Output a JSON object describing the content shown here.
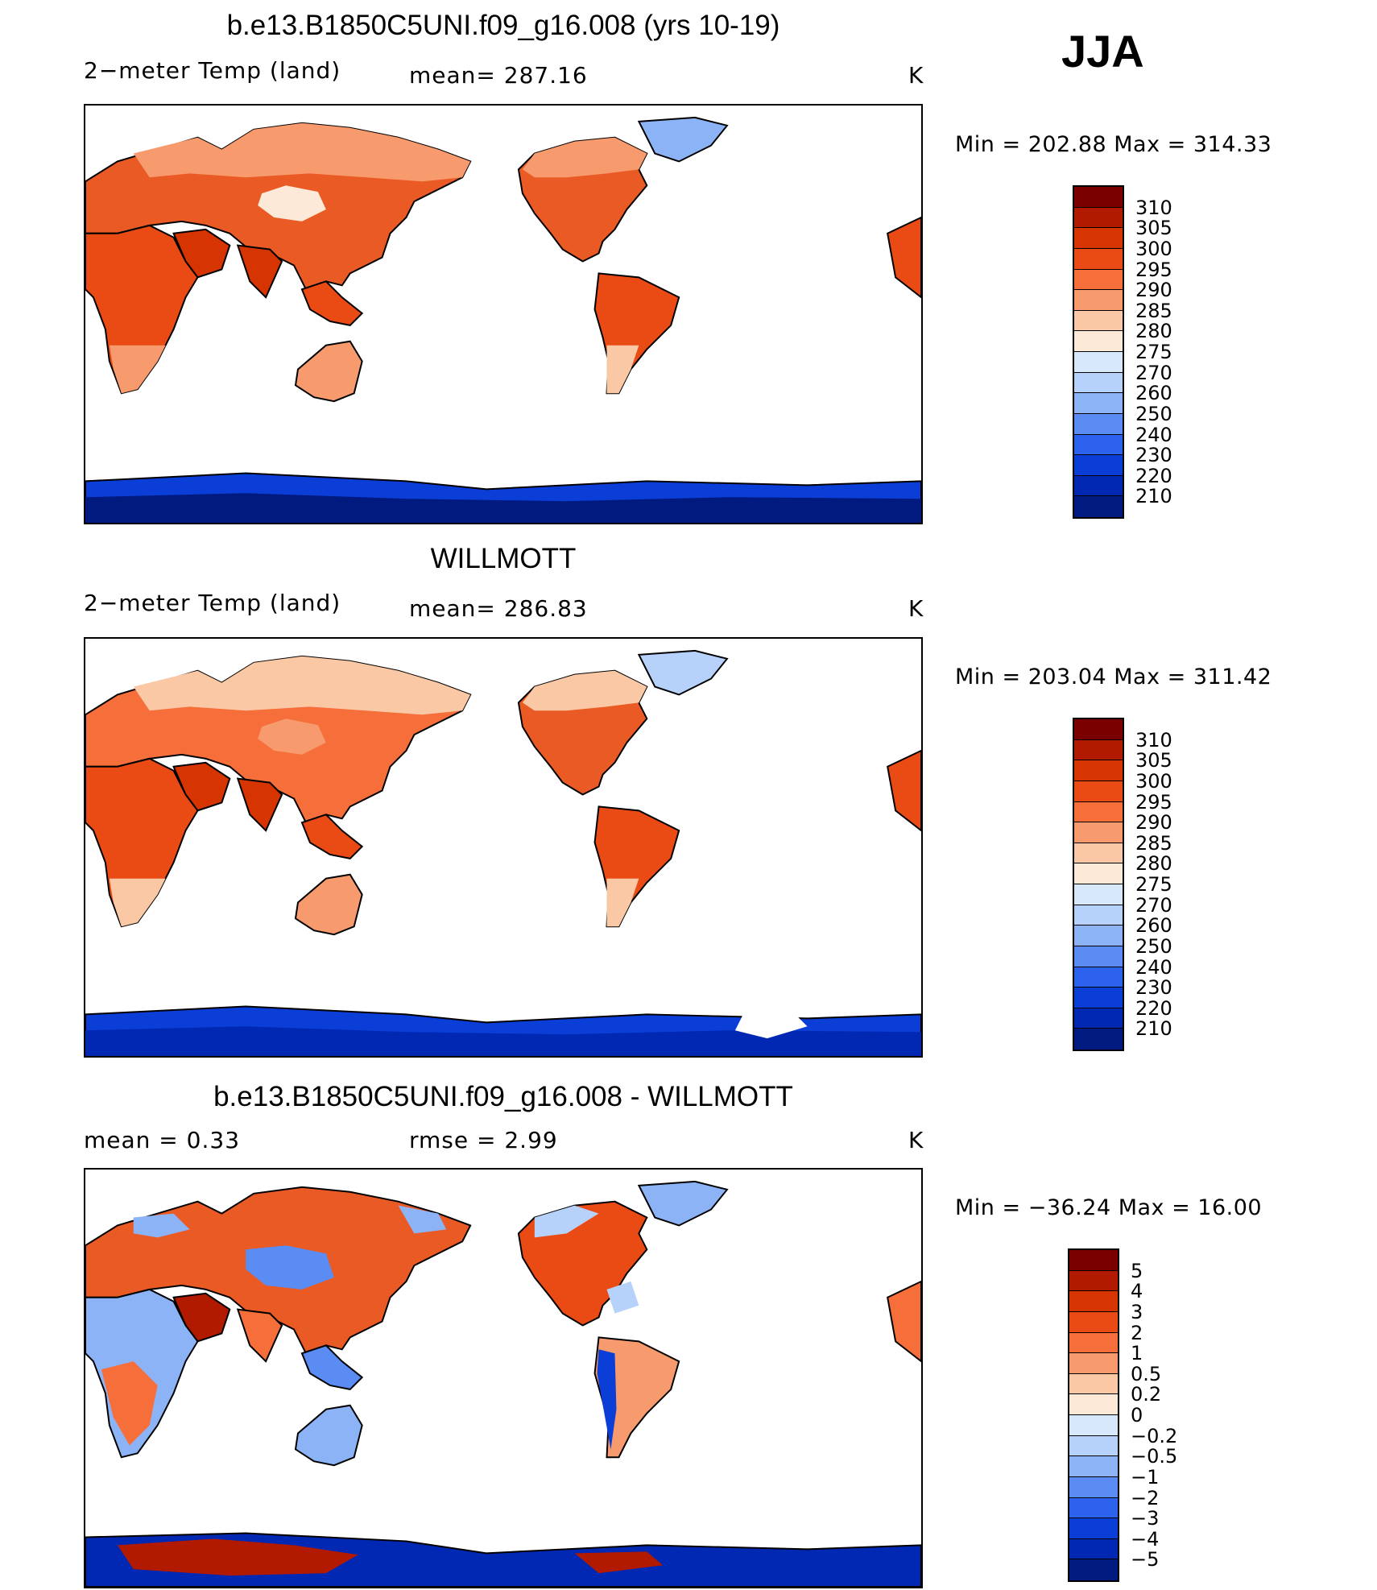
{
  "season": "JJA",
  "panels": [
    {
      "title": "b.e13.B1850C5UNI.f09_g16.008 (yrs 10-19)",
      "left_label": "2−meter Temp (land)",
      "center_label": "mean=  287.16",
      "units": "K",
      "minmax": "Min = 202.88 Max = 314.33",
      "colorbar": {
        "labels": [
          "310",
          "305",
          "300",
          "295",
          "290",
          "285",
          "280",
          "275",
          "270",
          "260",
          "250",
          "240",
          "230",
          "220",
          "210"
        ],
        "colors": [
          "#7a0000",
          "#b21a00",
          "#d63400",
          "#ea4a14",
          "#f66e3a",
          "#f79a6e",
          "#fbc8a6",
          "#fde9d7",
          "#d7e8fb",
          "#b6d1fa",
          "#8db3f7",
          "#5a8cf3",
          "#2d62ee",
          "#0a3ed6",
          "#0028b2",
          "#001a80"
        ]
      }
    },
    {
      "title": "WILLMOTT",
      "left_label": "2−meter Temp (land)",
      "center_label": "mean=  286.83",
      "units": "K",
      "minmax": "Min = 203.04 Max = 311.42",
      "colorbar": {
        "labels": [
          "310",
          "305",
          "300",
          "295",
          "290",
          "285",
          "280",
          "275",
          "270",
          "260",
          "250",
          "240",
          "230",
          "220",
          "210"
        ],
        "colors": [
          "#7a0000",
          "#b21a00",
          "#d63400",
          "#ea4a14",
          "#f66e3a",
          "#f79a6e",
          "#fbc8a6",
          "#fde9d7",
          "#d7e8fb",
          "#b6d1fa",
          "#8db3f7",
          "#5a8cf3",
          "#2d62ee",
          "#0a3ed6",
          "#0028b2",
          "#001a80"
        ]
      }
    },
    {
      "title": "b.e13.B1850C5UNI.f09_g16.008 - WILLMOTT",
      "left_label": "mean =     0.33",
      "center_label": "rmse =     2.99",
      "units": "K",
      "minmax": "Min = −36.24 Max =   16.00",
      "colorbar": {
        "labels": [
          "5",
          "4",
          "3",
          "2",
          "1",
          "0.5",
          "0.2",
          "0",
          "−0.2",
          "−0.5",
          "−1",
          "−2",
          "−3",
          "−4",
          "−5"
        ],
        "colors": [
          "#7a0000",
          "#b21a00",
          "#d63400",
          "#ea4a14",
          "#f66e3a",
          "#f79a6e",
          "#fbc8a6",
          "#fde9d7",
          "#d7e8fb",
          "#b6d1fa",
          "#8db3f7",
          "#5a8cf3",
          "#2d62ee",
          "#0a3ed6",
          "#0028b2",
          "#001a80"
        ]
      }
    }
  ]
}
